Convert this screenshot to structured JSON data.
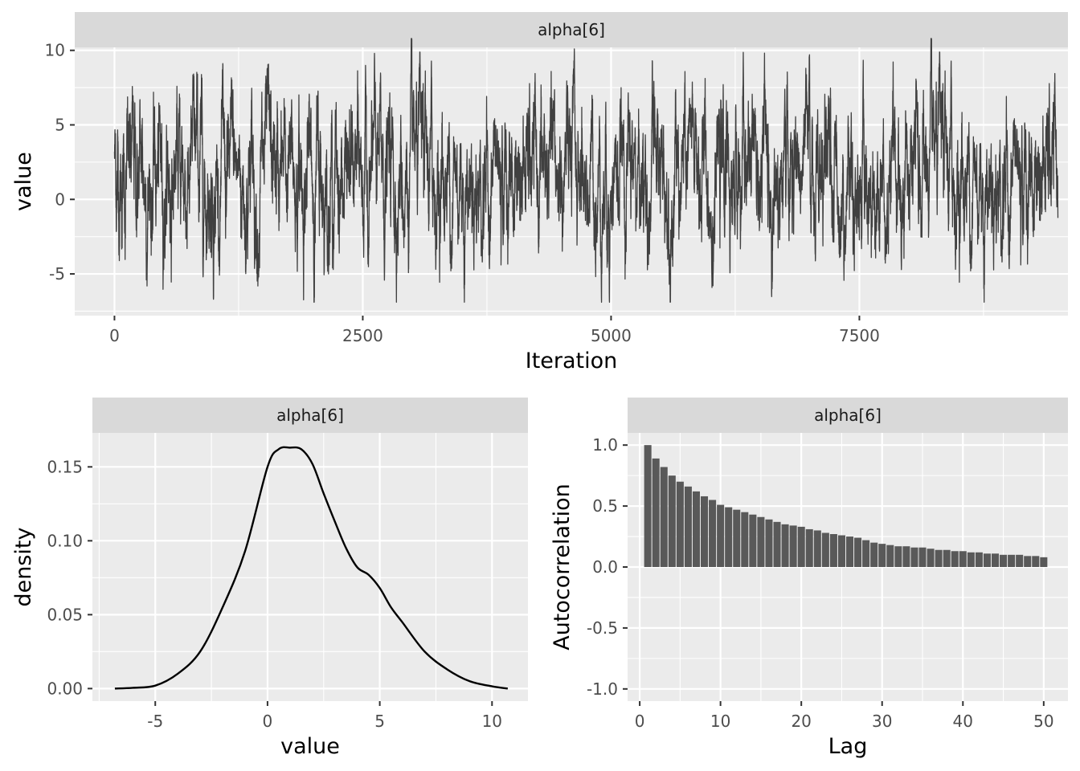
{
  "chart_data": [
    {
      "type": "line",
      "strip_label": "alpha[6]",
      "xlabel": "Iteration",
      "ylabel": "value",
      "xlim": [
        -400,
        9600
      ],
      "ylim": [
        -7.8,
        10.2
      ],
      "x_ticks": [
        0,
        2500,
        5000,
        7500
      ],
      "x_tick_labels": [
        "0",
        "2500",
        "5000",
        "7500"
      ],
      "y_ticks": [
        -5,
        0,
        5,
        10
      ],
      "y_tick_labels": [
        "-5",
        "0",
        "5",
        "10"
      ],
      "n_iterations": 9500,
      "trace_sd": 2.9,
      "trace_min": -6.9,
      "trace_max": 10.8,
      "trace_start": 3.2,
      "grid": true,
      "line_color": "#404040"
    },
    {
      "type": "line",
      "strip_label": "alpha[6]",
      "xlabel": "value",
      "ylabel": "density",
      "xlim": [
        -7.8,
        11.6
      ],
      "ylim": [
        -0.0085,
        0.173
      ],
      "x_ticks": [
        -5,
        0,
        5,
        10
      ],
      "x_tick_labels": [
        "-5",
        "0",
        "5",
        "10"
      ],
      "y_ticks": [
        0.0,
        0.05,
        0.1,
        0.15
      ],
      "y_tick_labels": [
        "0.00",
        "0.05",
        "0.10",
        "0.15"
      ],
      "x": [
        -6.8,
        -6,
        -5,
        -4,
        -3,
        -2,
        -1,
        0,
        0.5,
        1,
        1.5,
        2,
        2.5,
        3,
        3.5,
        4,
        4.5,
        5,
        5.5,
        6,
        7,
        8,
        9,
        10,
        10.7
      ],
      "y": [
        0.0,
        0.0005,
        0.002,
        0.01,
        0.025,
        0.055,
        0.093,
        0.15,
        0.162,
        0.163,
        0.162,
        0.152,
        0.132,
        0.113,
        0.095,
        0.082,
        0.077,
        0.068,
        0.055,
        0.045,
        0.025,
        0.013,
        0.005,
        0.0015,
        0.0
      ],
      "grid": true,
      "line_color": "#000000"
    },
    {
      "type": "bar",
      "strip_label": "alpha[6]",
      "xlabel": "Lag",
      "ylabel": "Autocorrelation",
      "xlim": [
        -1.5,
        53
      ],
      "ylim": [
        -1.1,
        1.1
      ],
      "x_ticks": [
        0,
        10,
        20,
        30,
        40,
        50
      ],
      "x_tick_labels": [
        "0",
        "10",
        "20",
        "30",
        "40",
        "50"
      ],
      "y_ticks": [
        -1.0,
        -0.5,
        0.0,
        0.5,
        1.0
      ],
      "y_tick_labels": [
        "-1.0",
        "-0.5",
        "0.0",
        "0.5",
        "1.0"
      ],
      "categories": [
        1,
        2,
        3,
        4,
        5,
        6,
        7,
        8,
        9,
        10,
        11,
        12,
        13,
        14,
        15,
        16,
        17,
        18,
        19,
        20,
        21,
        22,
        23,
        24,
        25,
        26,
        27,
        28,
        29,
        30,
        31,
        32,
        33,
        34,
        35,
        36,
        37,
        38,
        39,
        40,
        41,
        42,
        43,
        44,
        45,
        46,
        47,
        48,
        49,
        50
      ],
      "values": [
        1.0,
        0.89,
        0.82,
        0.75,
        0.7,
        0.66,
        0.62,
        0.58,
        0.55,
        0.51,
        0.49,
        0.47,
        0.45,
        0.43,
        0.41,
        0.39,
        0.37,
        0.35,
        0.34,
        0.33,
        0.31,
        0.3,
        0.28,
        0.27,
        0.26,
        0.25,
        0.24,
        0.22,
        0.2,
        0.19,
        0.18,
        0.17,
        0.17,
        0.16,
        0.16,
        0.15,
        0.14,
        0.14,
        0.13,
        0.13,
        0.12,
        0.12,
        0.11,
        0.11,
        0.1,
        0.1,
        0.1,
        0.09,
        0.09,
        0.08
      ],
      "grid": true,
      "bar_color": "#595959"
    }
  ]
}
